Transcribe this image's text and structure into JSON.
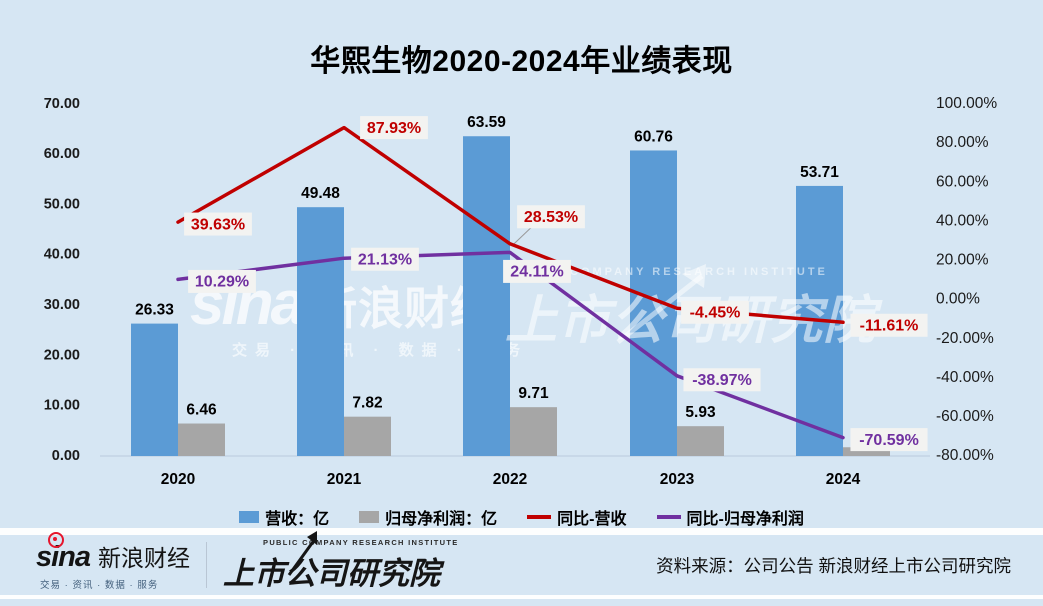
{
  "chart_data": {
    "type": "bar+line combo",
    "title": "华熙生物2020-2024年业绩表现",
    "categories": [
      "2020",
      "2021",
      "2022",
      "2023",
      "2024"
    ],
    "bar_series": [
      {
        "name": "营收：亿",
        "color": "#5B9BD5",
        "axis": "left",
        "values": [
          26.33,
          49.48,
          63.59,
          60.76,
          53.71
        ],
        "labels": [
          "26.33",
          "49.48",
          "63.59",
          "60.76",
          "53.71"
        ]
      },
      {
        "name": "归母净利润：亿",
        "color": "#A6A6A6",
        "axis": "left",
        "values": [
          6.46,
          7.82,
          9.71,
          5.93,
          1.74
        ],
        "labels": [
          "6.46",
          "7.82",
          "9.71",
          "5.93",
          ""
        ]
      }
    ],
    "line_series": [
      {
        "name": "同比-营收",
        "color": "#C00000",
        "axis": "right",
        "values": [
          39.63,
          87.93,
          28.53,
          -4.45,
          -11.61
        ],
        "labels": [
          "39.63%",
          "87.93%",
          "28.53%",
          "-4.45%",
          "-11.61%"
        ]
      },
      {
        "name": "同比-归母净利润",
        "color": "#7030A0",
        "axis": "right",
        "values": [
          10.29,
          21.13,
          24.11,
          -38.97,
          -70.59
        ],
        "labels": [
          "10.29%",
          "21.13%",
          "24.11%",
          "-38.97%",
          "-70.59%"
        ]
      }
    ],
    "left_axis": {
      "min": 0,
      "max": 70,
      "ticks": [
        "70.00",
        "60.00",
        "50.00",
        "40.00",
        "30.00",
        "20.00",
        "10.00",
        "0.00"
      ]
    },
    "right_axis": {
      "min": -80,
      "max": 100,
      "ticks": [
        "100.00%",
        "80.00%",
        "60.00%",
        "40.00%",
        "20.00%",
        "0.00%",
        "-20.00%",
        "-40.00%",
        "-60.00%",
        "-80.00%"
      ]
    },
    "legend": [
      "营收：亿",
      "归母净利润：亿",
      "同比-营收",
      "同比-归母净利润"
    ],
    "legend_position": "bottom",
    "grid": false
  },
  "watermarks": {
    "sina_logo": "sina",
    "sina_cn": "新浪财经",
    "sina_tagline": "交易 · 资讯 · 数据 · 服务",
    "pcri_en": "PUBLIC COMPANY RESEARCH INSTITUTE",
    "pcri_cn": "上市公司研究院"
  },
  "footer": {
    "sina_logo": "sina",
    "sina_cn": "新浪财经",
    "sina_tagline": "交易 · 资讯 · 数据 · 服务",
    "pcri_en": "PUBLIC COMPANY RESEARCH INSTITUTE",
    "pcri_cn": "上市公司研究院",
    "source": "资料来源：公司公告 新浪财经上市公司研究院"
  },
  "colors": {
    "background": "#D6E6F3",
    "revenue_bar": "#5B9BD5",
    "profit_bar": "#A6A6A6",
    "revenue_line": "#C00000",
    "profit_line": "#7030A0",
    "label_box": "#F3F3F1",
    "sina_red": "#E6162D"
  }
}
